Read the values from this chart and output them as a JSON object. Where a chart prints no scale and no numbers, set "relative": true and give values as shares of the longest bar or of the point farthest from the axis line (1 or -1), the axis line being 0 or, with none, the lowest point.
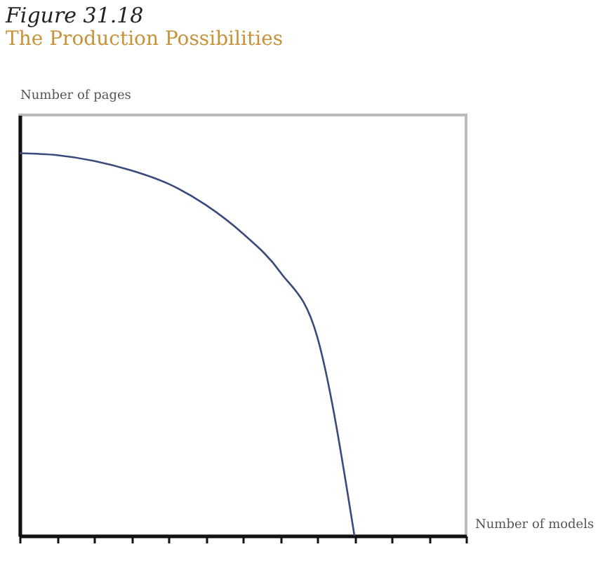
{
  "chart_data": {
    "type": "line",
    "title": "Figure 31.18",
    "subtitle": "The Production Possibilities",
    "xlabel": "Number of models",
    "ylabel": "Number of pages",
    "categories": [
      null,
      null,
      null,
      null,
      null,
      null,
      null,
      null,
      null,
      null,
      null,
      null,
      null
    ],
    "relative": true,
    "series": [
      {
        "color": "#3b4a7c",
        "values": [
          1,
          0.995,
          0.98,
          0.955,
          0.92,
          0.865,
          0.79,
          0.69,
          0.52,
          0,
          null,
          null,
          null
        ]
      }
    ],
    "grid": false,
    "legend": false,
    "marker": "none",
    "line_style": "solid"
  }
}
